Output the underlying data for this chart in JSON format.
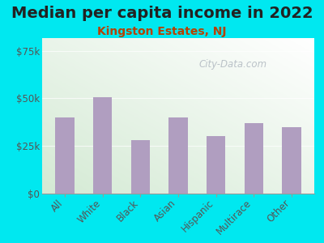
{
  "title": "Median per capita income in 2022",
  "subtitle": "Kingston Estates, NJ",
  "categories": [
    "All",
    "White",
    "Black",
    "Asian",
    "Hispanic",
    "Multirace",
    "Other"
  ],
  "values": [
    40000,
    50500,
    28000,
    40000,
    30000,
    37000,
    35000
  ],
  "bar_color": "#b09ec0",
  "background_outer": "#00e8f0",
  "background_inner_topleft": "#d4ead4",
  "background_inner_bottomright": "#f8fdf5",
  "title_color": "#222222",
  "subtitle_color": "#b84000",
  "tick_label_color": "#555555",
  "yticks": [
    0,
    25000,
    50000,
    75000
  ],
  "ytick_labels": [
    "$0",
    "$25k",
    "$50k",
    "$75k"
  ],
  "ylim": [
    0,
    82000
  ],
  "watermark": "City-Data.com",
  "title_fontsize": 14,
  "subtitle_fontsize": 10,
  "tick_fontsize": 8.5
}
